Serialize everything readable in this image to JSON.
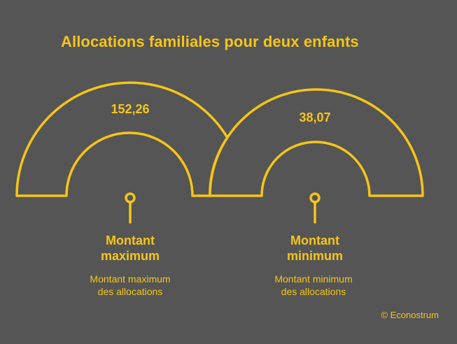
{
  "title": "Allocations familiales pour deux enfants",
  "colors": {
    "background": "#555555",
    "accent": "#F5C518"
  },
  "items": [
    {
      "value": "152,26",
      "label": "Montant\nmaximum",
      "description": "Montant maximum\ndes allocations"
    },
    {
      "value": "38,07",
      "label": "Montant\nminimum",
      "description": "Montant minimum\ndes allocations"
    }
  ],
  "copyright": "© Econostrum"
}
